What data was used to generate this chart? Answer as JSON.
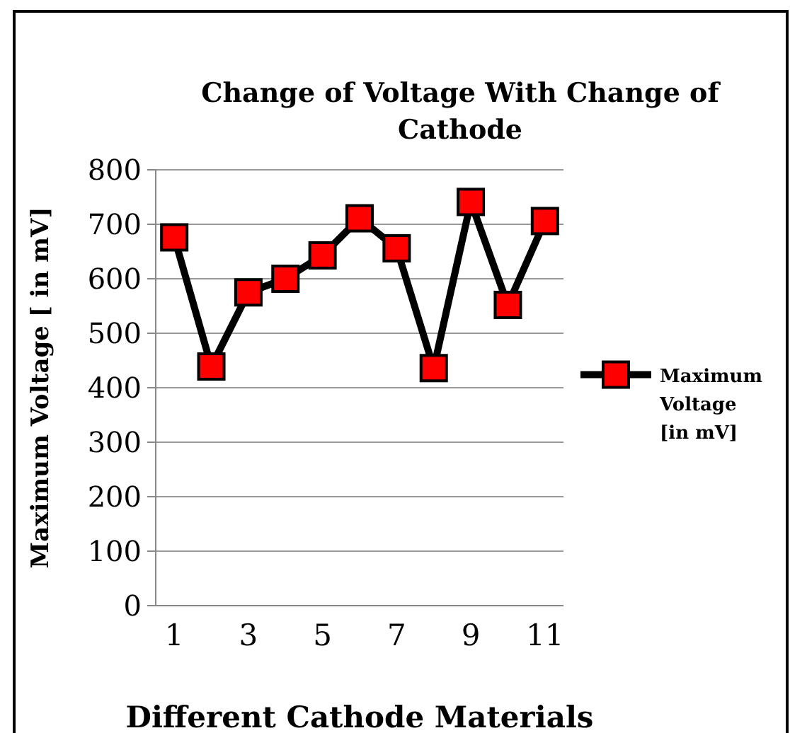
{
  "chart_data": {
    "type": "line",
    "title": "Change of Voltage With Change of Cathode",
    "xlabel": "Different Cathode Materials",
    "ylabel": "Maximum Voltage [ in mV]",
    "categories": [
      "1",
      null,
      "3",
      null,
      "5",
      null,
      "7",
      null,
      "9",
      null,
      "11"
    ],
    "series": [
      {
        "name": "Maximum Voltage [in mV]",
        "color": "#ff0000",
        "values": [
          676,
          439,
          575,
          600,
          643,
          711,
          656,
          436,
          741,
          552,
          706
        ]
      }
    ],
    "ylim": [
      0,
      800
    ],
    "yticks": [
      0,
      100,
      200,
      300,
      400,
      500,
      600,
      700,
      800
    ],
    "grid": "y",
    "legend": "right",
    "marker": "square",
    "line_style": "solid"
  }
}
